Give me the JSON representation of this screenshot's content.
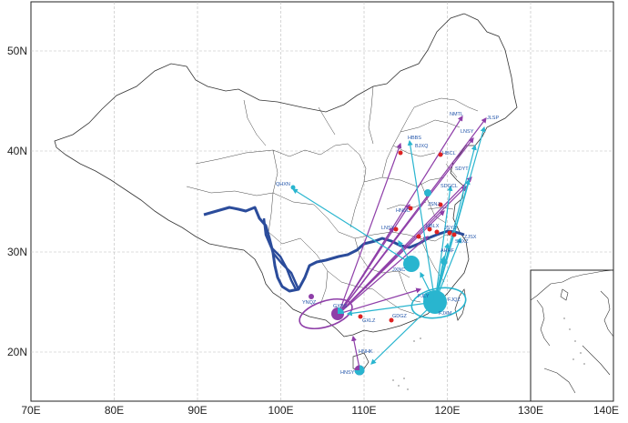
{
  "x_ticks": [
    "70E",
    "80E",
    "90E",
    "100E",
    "110E",
    "120E",
    "130E",
    "140E"
  ],
  "y_ticks": [
    "20N",
    "30N",
    "40N",
    "50N"
  ],
  "site_labels": [
    "NMTL",
    "JLSP",
    "HBBS",
    "BJXQ",
    "HBCL",
    "LNSY",
    "SDYT",
    "QHXN",
    "SDGCL",
    "HNSC",
    "JSNJ",
    "LNSY",
    "SHXZ",
    "JSYZ",
    "HBLX",
    "AHHF",
    "ZJSX",
    "JXNC",
    "FJLY",
    "FJQZ",
    "FJXM",
    "YNQZ",
    "GXBS",
    "GXLZ",
    "GDGZ",
    "HNHK",
    "HNSY"
  ],
  "colors": {
    "border": "#333333",
    "grid": "#bbbbbb",
    "river": "#2b4c9b",
    "cyan_flow": "#29b5cf",
    "purple_flow": "#8e3ea8",
    "site_dot": "#dd2222"
  }
}
